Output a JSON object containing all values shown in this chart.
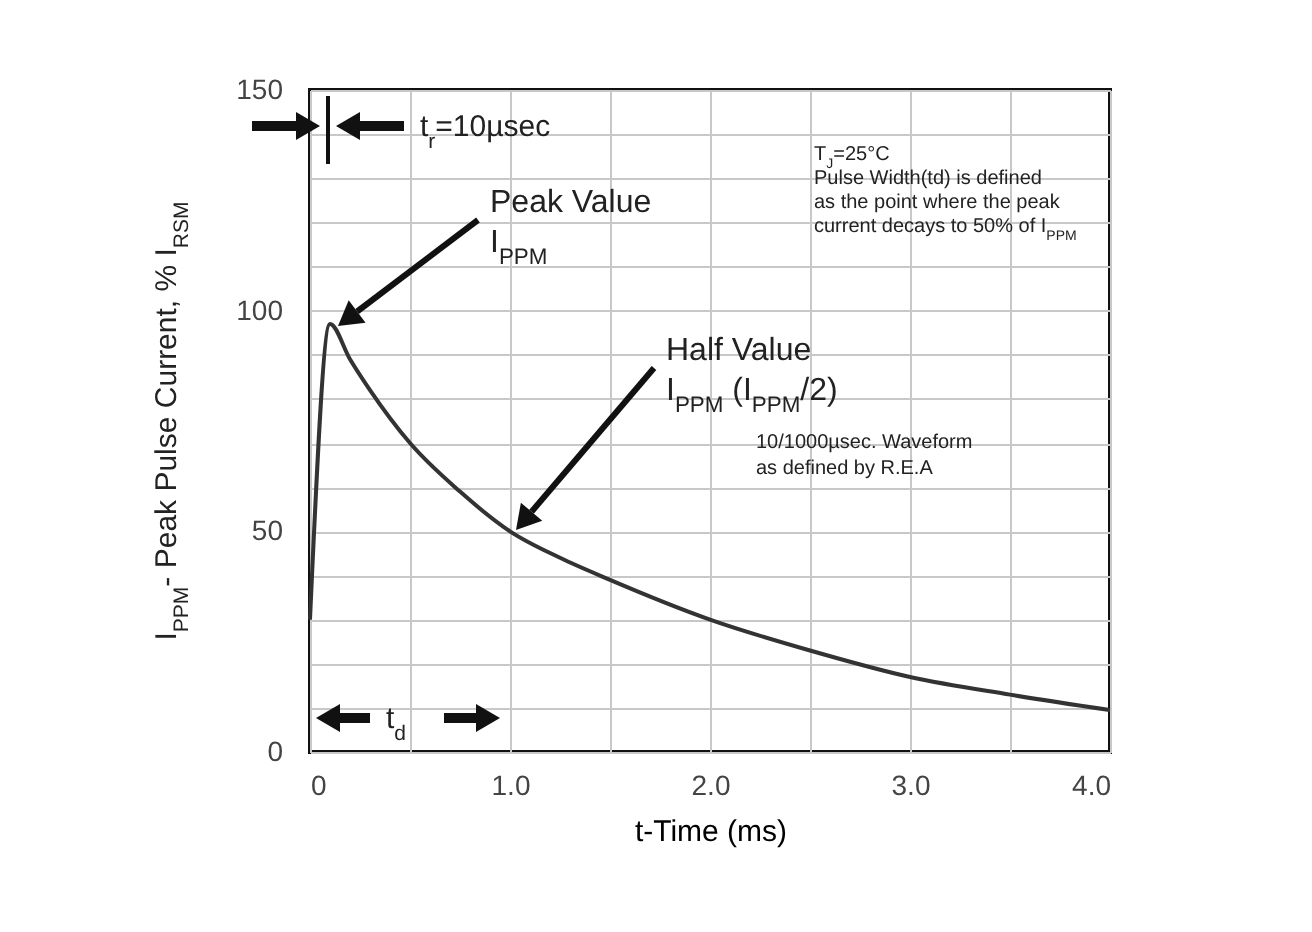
{
  "chart_data": {
    "type": "line",
    "xlabel": "t-Time (ms)",
    "ylabel": "I$_{PPM}$- Peak Pulse Current, % I$_{RSM}$",
    "x": [
      0,
      0.1,
      0.2,
      0.3,
      0.5,
      0.75,
      1.0,
      1.25,
      1.5,
      2.0,
      2.5,
      3.0,
      3.5,
      4.0
    ],
    "series": [
      {
        "color": "#333333",
        "values": [
          30,
          97,
          89,
          82,
          70,
          59,
          50,
          44,
          39,
          30,
          23,
          17,
          13,
          9.5
        ]
      }
    ],
    "xlim": [
      0,
      4
    ],
    "ylim": [
      0,
      150
    ],
    "xticks": [
      0,
      {
        "value": 0.5,
        "label": null
      },
      {
        "value": 1,
        "label": "1.0"
      },
      {
        "value": 1.5,
        "label": null
      },
      {
        "value": 2,
        "label": "2.0"
      },
      {
        "value": 2.5,
        "label": null
      },
      {
        "value": 3,
        "label": "3.0"
      },
      {
        "value": 3.5,
        "label": null
      },
      {
        "value": 4,
        "label": "4.0"
      }
    ],
    "yticks": [
      0,
      {
        "value": 10,
        "label": null
      },
      {
        "value": 20,
        "label": null
      },
      {
        "value": 30,
        "label": null
      },
      {
        "value": 40,
        "label": null
      },
      50,
      {
        "value": 60,
        "label": null
      },
      {
        "value": 70,
        "label": null
      },
      {
        "value": 80,
        "label": null
      },
      {
        "value": 90,
        "label": null
      },
      100,
      {
        "value": 110,
        "label": null
      },
      {
        "value": 120,
        "label": null
      },
      {
        "value": 130,
        "label": null
      },
      {
        "value": 140,
        "label": null
      },
      150
    ],
    "grid": true,
    "line_style": "solid",
    "annotations": [
      "t$_{r}$=10µsec",
      "Peak Value\nI$_{PPM}$",
      "Half Value\nI$_{PPM}$ (I$_{PPM}$/2)",
      "T$_{J}$=25°C\nPulse Width(td) is defined\nas the point where the peak\ncurrent decays to 50% of I$_{PPM}$",
      "10/1000µsec. Waveform\nas defined by R.E.A",
      "t$_{d}$"
    ]
  }
}
